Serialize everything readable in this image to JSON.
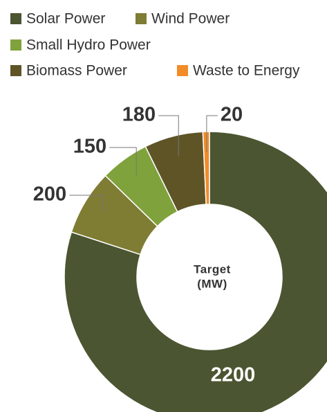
{
  "chart_data": {
    "type": "donut",
    "center_label": [
      "Target",
      "(MW)"
    ],
    "categories": [
      "Solar Power",
      "Wind Power",
      "Small Hydro Power",
      "Biomass Power",
      "Waste to Energy"
    ],
    "values": [
      2200,
      200,
      150,
      180,
      20
    ],
    "colors": [
      "#4b5531",
      "#7f7c34",
      "#80a23c",
      "#5e5426",
      "#f28c28"
    ]
  }
}
